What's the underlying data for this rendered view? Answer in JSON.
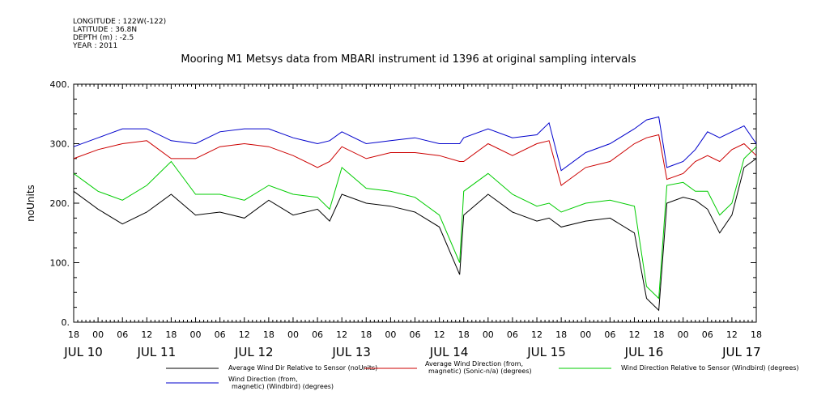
{
  "meta": {
    "longitude": "LONGITUDE : 122W(-122)",
    "latitude": "LATITUDE : 36.8N",
    "depth": "DEPTH (m) : -2.5",
    "year": "YEAR : 2011"
  },
  "chart_data": {
    "type": "line",
    "title": "Mooring M1 Metsys data from MBARI instrument id 1396 at original sampling intervals",
    "ylabel": "noUnits",
    "ylim": [
      0,
      400
    ],
    "yticks": [
      0,
      100,
      200,
      300,
      400
    ],
    "ytick_labels": [
      "0.",
      "100.",
      "200.",
      "300.",
      "400."
    ],
    "xlim": [
      0,
      168
    ],
    "hour_ticks": [
      "18",
      "00",
      "06",
      "12",
      "18",
      "00",
      "06",
      "12",
      "18",
      "00",
      "06",
      "12",
      "18",
      "00",
      "06",
      "12",
      "18",
      "00",
      "06",
      "12",
      "18",
      "00",
      "06",
      "12",
      "18",
      "00",
      "06",
      "12",
      "18"
    ],
    "day_labels": [
      {
        "label": "JUL 10",
        "hour": 0
      },
      {
        "label": "JUL 11",
        "hour": 18
      },
      {
        "label": "JUL 12",
        "hour": 42
      },
      {
        "label": "JUL 13",
        "hour": 66
      },
      {
        "label": "JUL 14",
        "hour": 90
      },
      {
        "label": "JUL 15",
        "hour": 114
      },
      {
        "label": "JUL 16",
        "hour": 138
      },
      {
        "label": "JUL 17",
        "hour": 162
      }
    ],
    "x": [
      0,
      6,
      12,
      18,
      24,
      30,
      36,
      42,
      48,
      54,
      60,
      63,
      66,
      72,
      78,
      84,
      90,
      95,
      96,
      102,
      108,
      114,
      117,
      120,
      126,
      132,
      138,
      141,
      144,
      146,
      150,
      153,
      156,
      159,
      162,
      165,
      168
    ],
    "series": [
      {
        "name": "Average Wind Dir Relative to Sensor (noUnits)",
        "color": "#000000",
        "values": [
          220,
          190,
          165,
          185,
          215,
          180,
          185,
          175,
          205,
          180,
          190,
          170,
          215,
          200,
          195,
          185,
          160,
          80,
          180,
          215,
          185,
          170,
          175,
          160,
          170,
          175,
          150,
          40,
          20,
          200,
          210,
          205,
          190,
          150,
          180,
          260,
          275
        ]
      },
      {
        "name": "Average Wind Direction (from, magnetic) (Sonic-n/a) (degrees)",
        "color": "#cc0000",
        "values": [
          275,
          290,
          300,
          305,
          275,
          275,
          295,
          300,
          295,
          280,
          260,
          270,
          295,
          275,
          285,
          285,
          280,
          270,
          270,
          300,
          280,
          300,
          305,
          230,
          260,
          270,
          300,
          310,
          315,
          240,
          250,
          270,
          280,
          270,
          290,
          300,
          280
        ]
      },
      {
        "name": "Wind Direction Relative to Sensor (Windbird) (degrees)",
        "color": "#00cc00",
        "values": [
          250,
          220,
          205,
          230,
          270,
          215,
          215,
          205,
          230,
          215,
          210,
          190,
          260,
          225,
          220,
          210,
          180,
          100,
          220,
          250,
          215,
          195,
          200,
          185,
          200,
          205,
          195,
          60,
          40,
          230,
          235,
          220,
          220,
          180,
          200,
          275,
          295
        ]
      },
      {
        "name": "Wind Direction (from, magnetic) (Windbird) (degrees)",
        "color": "#0000cc",
        "values": [
          295,
          310,
          325,
          325,
          305,
          300,
          320,
          325,
          325,
          310,
          300,
          305,
          320,
          300,
          305,
          310,
          300,
          300,
          310,
          325,
          310,
          315,
          335,
          255,
          285,
          300,
          325,
          340,
          345,
          260,
          270,
          290,
          320,
          310,
          320,
          330,
          300
        ]
      }
    ],
    "legend_placement": "bottom"
  }
}
